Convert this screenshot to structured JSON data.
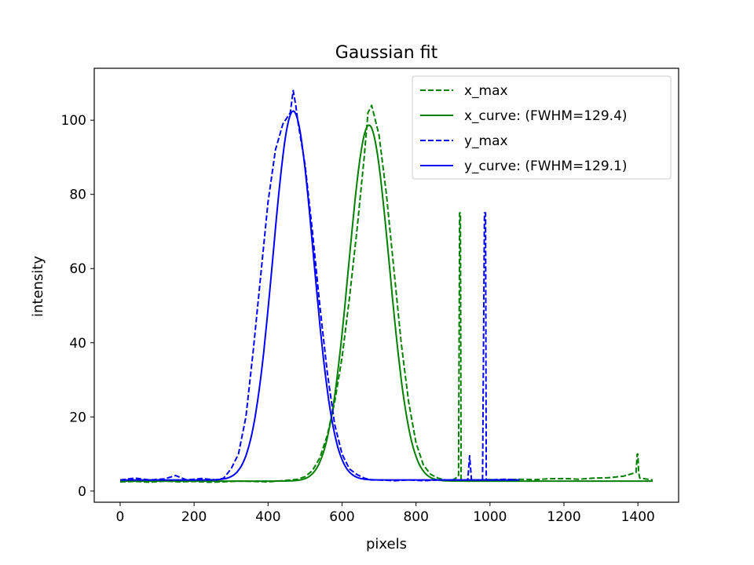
{
  "chart_data": {
    "type": "line",
    "title": "Gaussian fit",
    "xlabel": "pixels",
    "ylabel": "intensity",
    "xlim": [
      -70,
      1510
    ],
    "ylim": [
      -3,
      114
    ],
    "xticks": [
      0,
      200,
      400,
      600,
      800,
      1000,
      1200,
      1400
    ],
    "yticks": [
      0,
      20,
      40,
      60,
      80,
      100
    ],
    "grid": false,
    "legend_position": "top-right",
    "series": [
      {
        "name": "x_max",
        "style": "dashed",
        "color": "#008000",
        "x": [
          0,
          40,
          80,
          120,
          160,
          200,
          240,
          280,
          320,
          360,
          400,
          440,
          480,
          500,
          520,
          540,
          560,
          580,
          600,
          620,
          640,
          660,
          670,
          680,
          700,
          720,
          740,
          760,
          780,
          800,
          820,
          840,
          860,
          880,
          900,
          915,
          918,
          920,
          922,
          925,
          940,
          960,
          1000,
          1040,
          1080,
          1120,
          1160,
          1200,
          1240,
          1280,
          1320,
          1360,
          1395,
          1398,
          1400,
          1402,
          1405,
          1440
        ],
        "y": [
          2.5,
          2.6,
          2.4,
          2.7,
          2.5,
          2.6,
          2.4,
          2.5,
          2.7,
          2.6,
          2.5,
          2.8,
          3.2,
          3.9,
          5.5,
          9.0,
          15.0,
          24.0,
          36.0,
          52.0,
          70.0,
          90.0,
          102.0,
          104.0,
          96.0,
          80.0,
          60.0,
          40.0,
          24.0,
          13.0,
          7.0,
          4.5,
          3.5,
          3.0,
          3.0,
          4.0,
          75.0,
          75.0,
          3.0,
          3.0,
          3.0,
          3.0,
          3.1,
          3.0,
          3.2,
          3.1,
          3.3,
          3.4,
          3.2,
          3.5,
          3.6,
          4.0,
          5.0,
          10.0,
          10.0,
          5.0,
          3.5,
          3.0
        ]
      },
      {
        "name": "x_curve: (FWHM=129.4)",
        "style": "solid",
        "color": "#008000",
        "kind": "gaussian",
        "amplitude": 96,
        "center": 673,
        "fwhm": 129.4,
        "offset": 2.7,
        "x_range": [
          0,
          1440
        ]
      },
      {
        "name": "y_max",
        "style": "dashed",
        "color": "#0000ff",
        "x": [
          0,
          40,
          80,
          120,
          150,
          180,
          220,
          260,
          280,
          300,
          320,
          340,
          360,
          380,
          400,
          420,
          440,
          460,
          468,
          475,
          480,
          500,
          520,
          540,
          560,
          580,
          600,
          620,
          640,
          660,
          680,
          700,
          740,
          780,
          820,
          860,
          900,
          940,
          945,
          950,
          980,
          985,
          988,
          990,
          1000,
          1040,
          1080
        ],
        "y": [
          3.0,
          3.5,
          3.0,
          3.3,
          4.2,
          3.0,
          3.4,
          3.0,
          3.5,
          6.0,
          10.0,
          20.0,
          38.0,
          58.0,
          78.0,
          92.0,
          99.0,
          102.0,
          108.0,
          104.0,
          100.0,
          88.0,
          70.0,
          50.0,
          32.0,
          18.0,
          10.0,
          6.0,
          4.5,
          3.5,
          3.0,
          3.0,
          2.8,
          3.0,
          2.8,
          3.0,
          3.0,
          3.0,
          9.5,
          3.0,
          3.0,
          75.0,
          75.0,
          3.0,
          3.0,
          3.2,
          3.0
        ]
      },
      {
        "name": "y_curve: (FWHM=129.1)",
        "style": "solid",
        "color": "#0000ff",
        "kind": "gaussian",
        "amplitude": 99.5,
        "center": 468,
        "fwhm": 129.1,
        "offset": 3.0,
        "x_range": [
          0,
          1080
        ]
      }
    ]
  }
}
